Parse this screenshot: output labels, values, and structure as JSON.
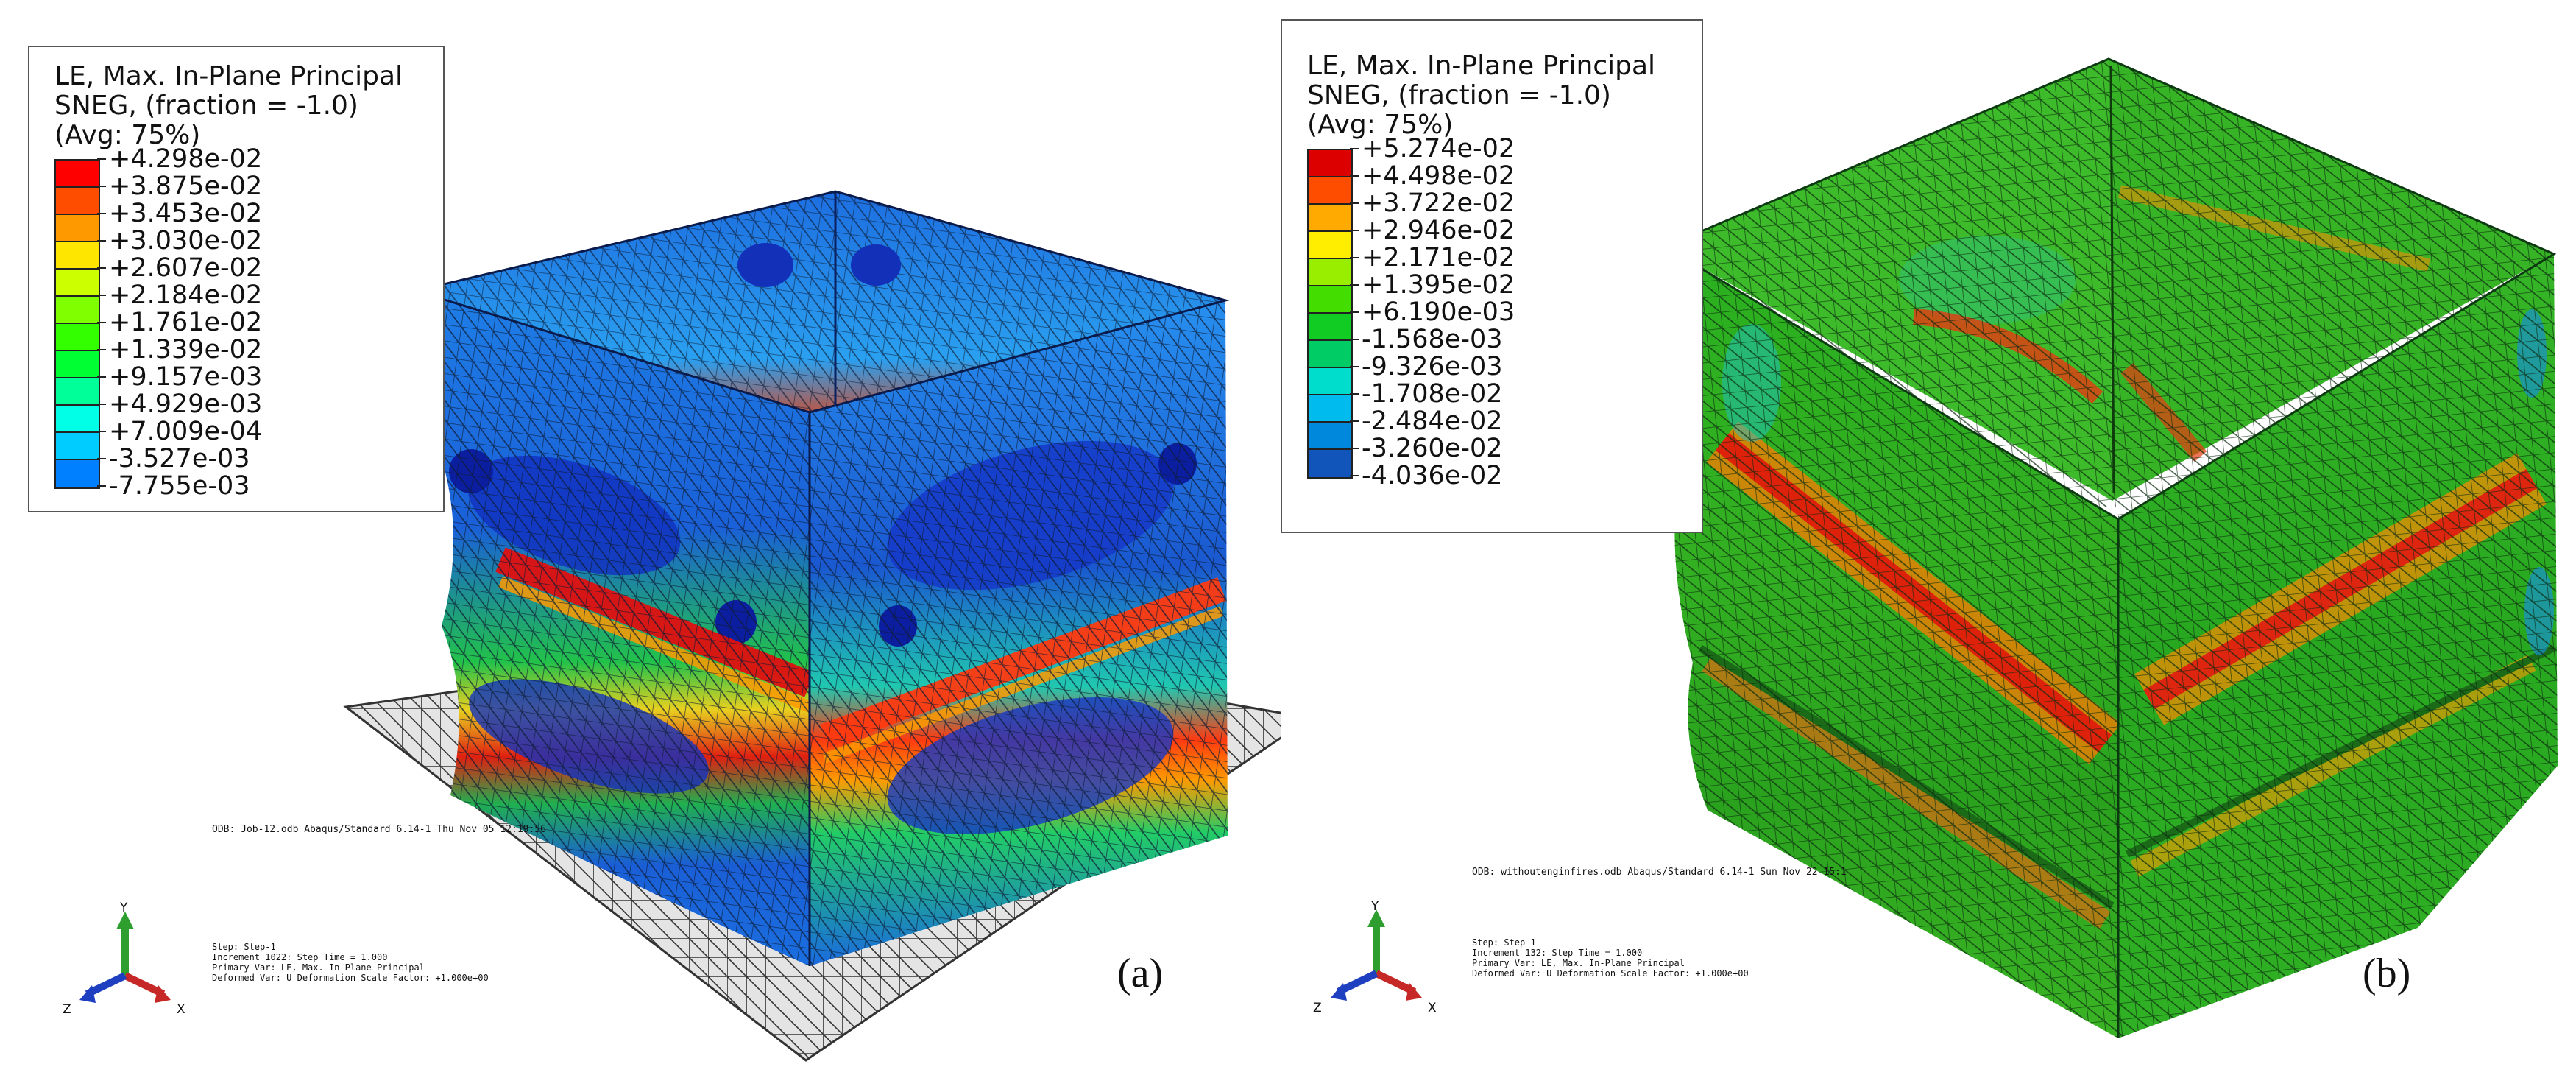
{
  "panels": [
    {
      "id": "a",
      "sublabel": "(a)",
      "legend": {
        "line1": "LE, Max. In-Plane Principal",
        "line2": "SNEG, (fraction = -1.0)",
        "line3": "(Avg: 75%)",
        "values": [
          "+4.298e-02",
          "+3.875e-02",
          "+3.453e-02",
          "+3.030e-02",
          "+2.607e-02",
          "+2.184e-02",
          "+1.761e-02",
          "+1.339e-02",
          "+9.157e-03",
          "+4.929e-03",
          "+7.009e-04",
          "-3.527e-03",
          "-7.755e-03"
        ]
      },
      "odb_line": "ODB: Job-12.odb    Abaqus/Standard 6.14-1    Thu Nov 05 12:19:56",
      "step_lines": [
        "Step: Step-1",
        "Increment   1022: Step Time =    1.000",
        "Primary Var: LE, Max. In-Plane Principal",
        "Deformed Var: U   Deformation Scale Factor: +1.000e+00"
      ]
    },
    {
      "id": "b",
      "sublabel": "(b)",
      "legend": {
        "line1": "LE, Max. In-Plane Principal",
        "line2": "SNEG, (fraction = -1.0)",
        "line3": "(Avg: 75%)",
        "values": [
          "+5.274e-02",
          "+4.498e-02",
          "+3.722e-02",
          "+2.946e-02",
          "+2.171e-02",
          "+1.395e-02",
          "+6.190e-03",
          "-1.568e-03",
          "-9.326e-03",
          "-1.708e-02",
          "-2.484e-02",
          "-3.260e-02",
          "-4.036e-02"
        ]
      },
      "odb_line": "ODB: withoutenginfires.odb    Abaqus/Standard 6.14-1    Sun Nov 22 15:1",
      "step_lines": [
        "Step: Step-1",
        "Increment    132: Step Time =    1.000",
        "Primary Var: LE, Max. In-Plane Principal",
        "Deformed Var: U   Deformation Scale Factor: +1.000e+00"
      ]
    }
  ],
  "triad": {
    "y": "Y",
    "z": "Z",
    "x": "X"
  },
  "colors": {
    "contour": [
      "#ff0000",
      "#ff4d00",
      "#ff9900",
      "#ffe600",
      "#ccff00",
      "#80ff00",
      "#33ff00",
      "#00ff33",
      "#00ff99",
      "#00ffe6",
      "#00ccff",
      "#0080ff",
      "#0033ff"
    ],
    "contour_b": [
      "#dd0000",
      "#ff4d00",
      "#ffaa00",
      "#ffee00",
      "#99ee00",
      "#44dd00",
      "#11cc22",
      "#00cc66",
      "#00ddcc",
      "#00bbee",
      "#0088dd",
      "#1155bb",
      "#0a1a99"
    ],
    "mesh": "#1a1a1a",
    "axis_x": "#c62828",
    "axis_y": "#2e9e2e",
    "axis_z": "#1e3fbf"
  }
}
